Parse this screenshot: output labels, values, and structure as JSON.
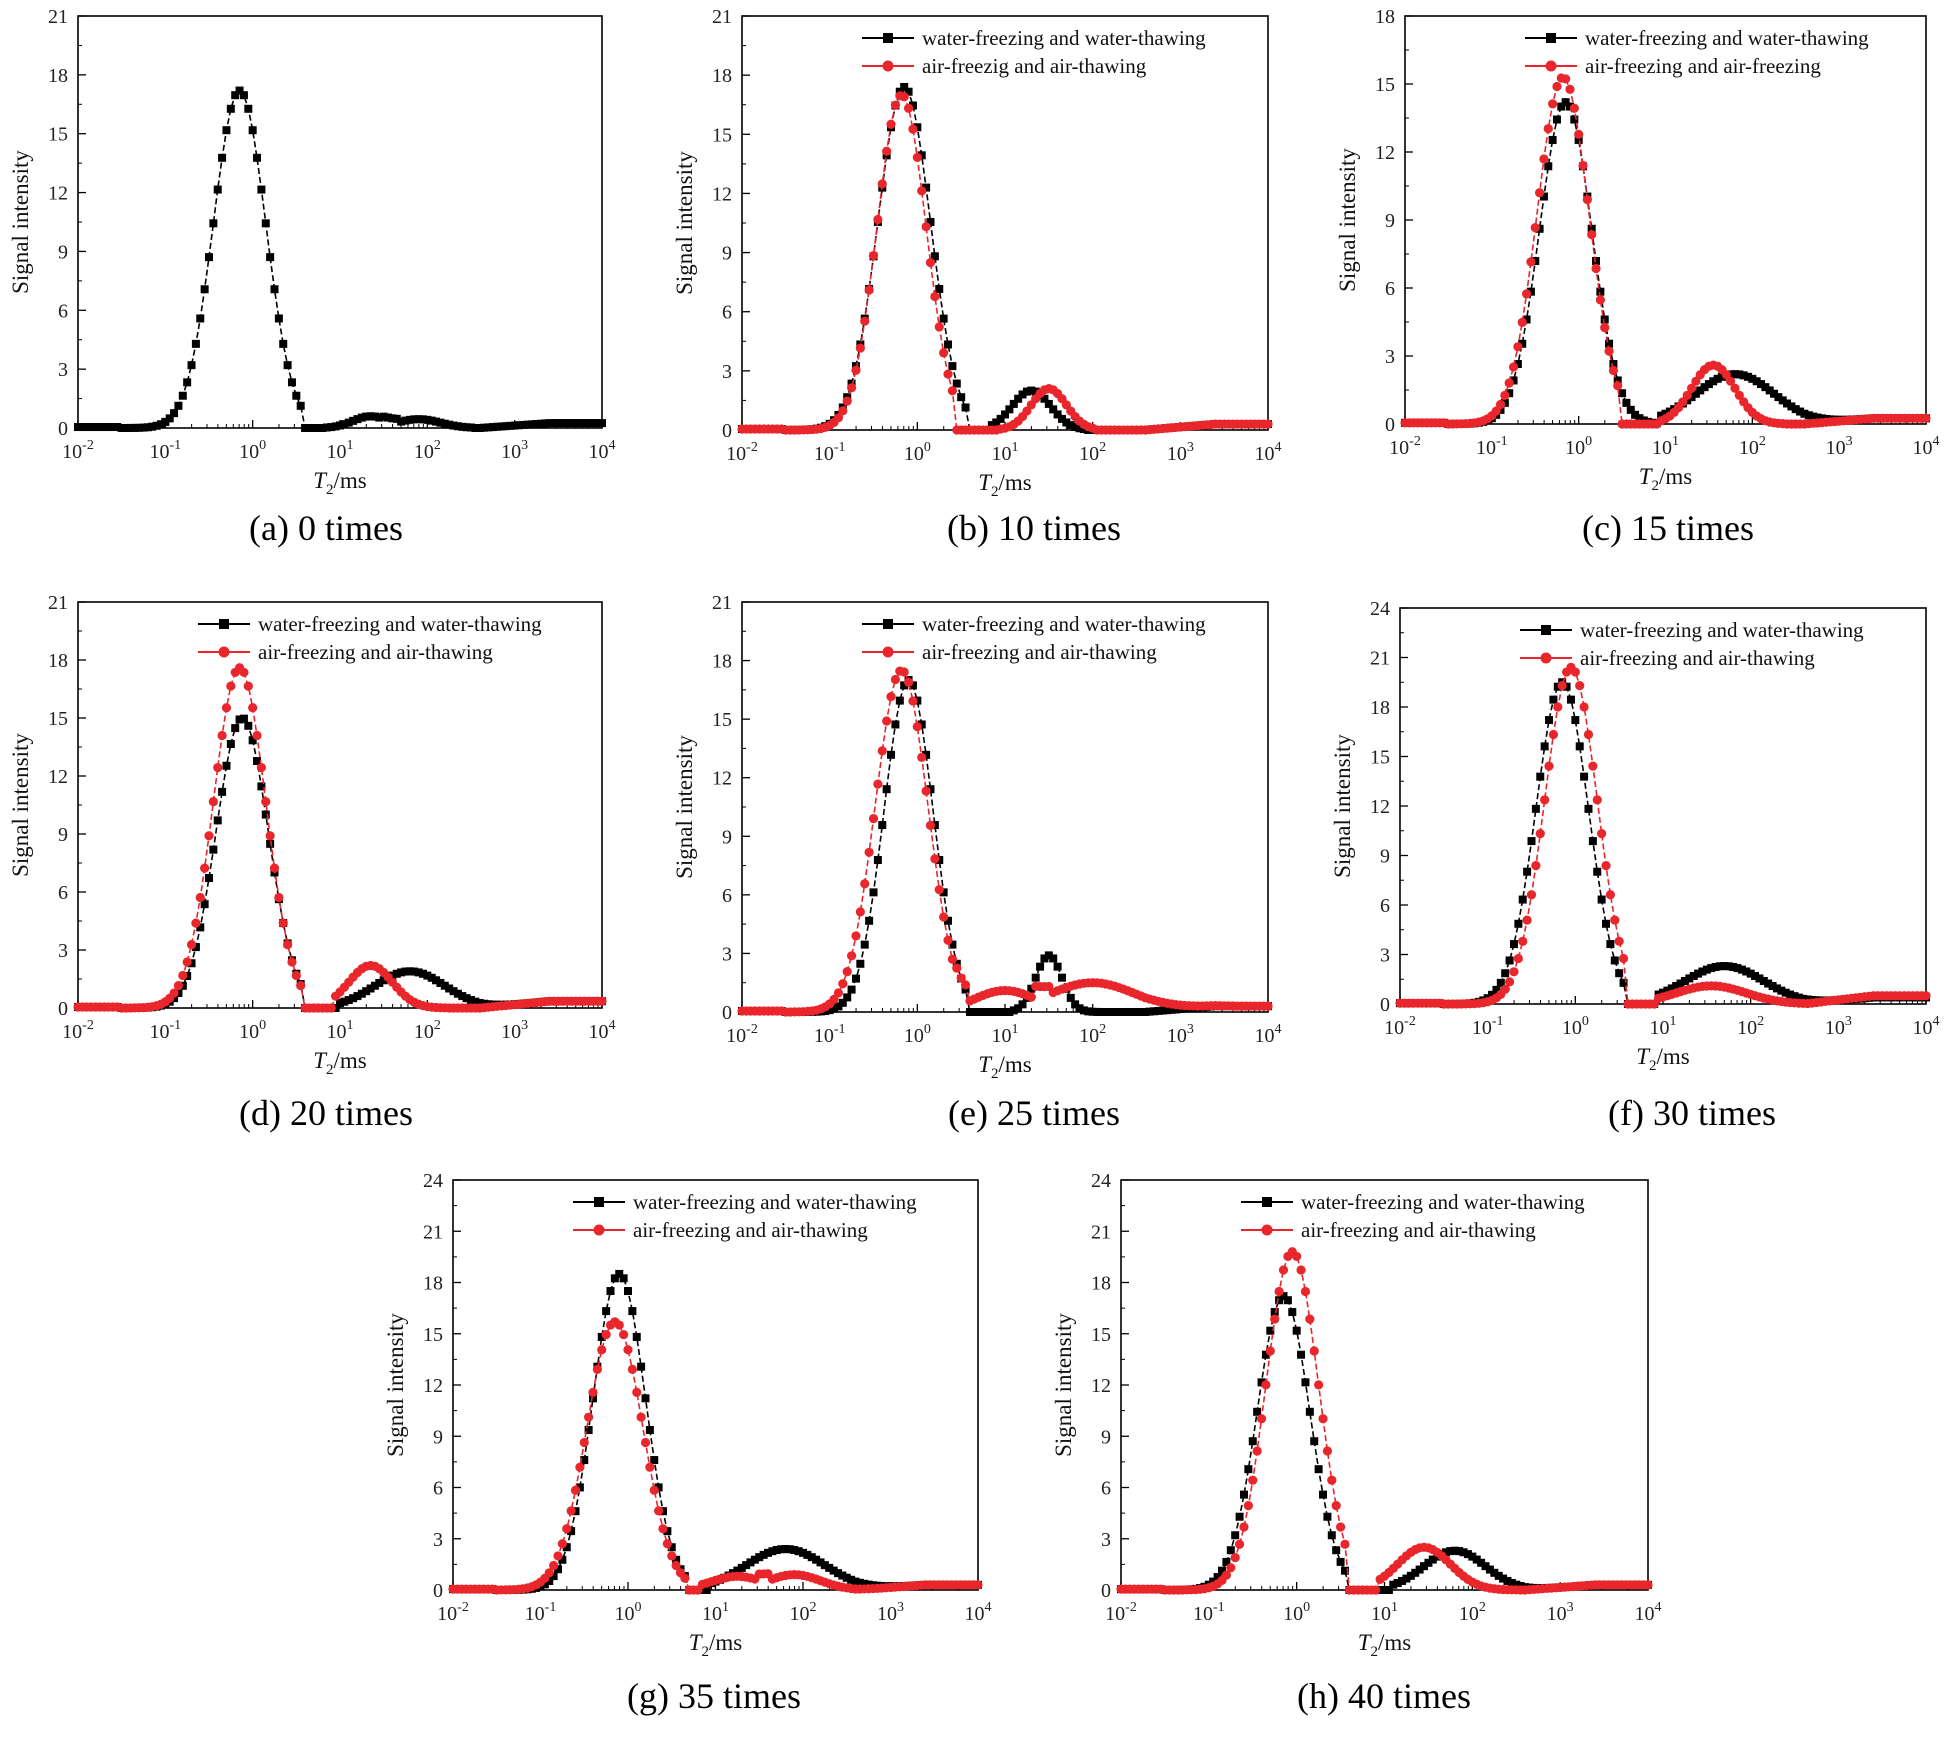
{
  "chart_data": [
    {
      "type": "line",
      "caption": "(a) 0 times",
      "xlabel": "T2/ms",
      "xlabel_italic": "T",
      "xlabel_sub": "2",
      "xlabel_rest": "/ms",
      "ylabel": "Signal intensity",
      "xscale": "log",
      "xticks": [
        "10-2",
        "10-1",
        "100",
        "101",
        "102",
        "103",
        "104"
      ],
      "xlim": [
        -2,
        4
      ],
      "yticks": [
        "0",
        "3",
        "6",
        "9",
        "12",
        "15",
        "18",
        "21"
      ],
      "ylim": [
        0,
        21
      ],
      "legend": [],
      "series": [
        {
          "name": "water-freezing and water-thawing",
          "color": "#000000",
          "marker": "square",
          "peaks": [
            {
              "mu": -0.15,
              "sigma": 0.3,
              "amp": 17.2,
              "cut_lo": -1.5,
              "cut_hi": 0.6
            },
            {
              "mu": 1.35,
              "sigma": 0.2,
              "amp": 0.6,
              "cut_lo": 0.8,
              "cut_hi": 1.7
            },
            {
              "mu": 1.9,
              "sigma": 0.25,
              "amp": 0.45,
              "cut_lo": 1.5,
              "cut_hi": 2.5
            }
          ],
          "base_left": 0.05,
          "base_right": 0.25
        }
      ]
    },
    {
      "type": "line",
      "caption": "(b) 10 times",
      "xlabel": "T2/ms",
      "xlabel_italic": "T",
      "xlabel_sub": "2",
      "xlabel_rest": "/ms",
      "ylabel": "Signal intensity",
      "xscale": "log",
      "xticks": [
        "10-2",
        "10-1",
        "100",
        "101",
        "102",
        "103",
        "104"
      ],
      "xlim": [
        -2,
        4
      ],
      "yticks": [
        "0",
        "3",
        "6",
        "9",
        "12",
        "15",
        "18",
        "21"
      ],
      "ylim": [
        0,
        21
      ],
      "legend": [
        "water-freezing and water-thawing",
        "air-freezig and air-thawing"
      ],
      "series": [
        {
          "name": "water-freezing and water-thawing",
          "color": "#000000",
          "marker": "square",
          "peaks": [
            {
              "mu": -0.15,
              "sigma": 0.3,
              "amp": 17.4,
              "cut_lo": -1.5,
              "cut_hi": 0.6
            },
            {
              "mu": 1.3,
              "sigma": 0.22,
              "amp": 2.0,
              "cut_lo": 0.8,
              "cut_hi": 1.9
            }
          ],
          "base_left": 0.05,
          "base_right": 0.3
        },
        {
          "name": "air-freezig and air-thawing",
          "color": "#e8262b",
          "marker": "circle",
          "peaks": [
            {
              "mu": -0.18,
              "sigma": 0.28,
              "amp": 17.0,
              "cut_lo": -1.5,
              "cut_hi": 0.45
            },
            {
              "mu": 1.5,
              "sigma": 0.2,
              "amp": 2.1,
              "cut_lo": 0.95,
              "cut_hi": 2.0
            }
          ],
          "base_left": 0.05,
          "base_right": 0.3
        }
      ]
    },
    {
      "type": "line",
      "caption": "(c) 15 times",
      "xlabel": "T2/ms",
      "xlabel_italic": "T",
      "xlabel_sub": "2",
      "xlabel_rest": "/ms",
      "ylabel": "Signal intensity",
      "xscale": "log",
      "xticks": [
        "10-2",
        "10-1",
        "100",
        "101",
        "102",
        "103",
        "104"
      ],
      "xlim": [
        -2,
        4
      ],
      "yticks": [
        "0",
        "3",
        "6",
        "9",
        "12",
        "15",
        "18"
      ],
      "ylim": [
        0,
        18
      ],
      "legend": [
        "water-freezing and water-thawing",
        "air-freezing and air-freezing"
      ],
      "series": [
        {
          "name": "water-freezing and water-thawing",
          "color": "#000000",
          "marker": "square",
          "peaks": [
            {
              "mu": -0.15,
              "sigma": 0.3,
              "amp": 14.2,
              "cut_lo": -1.5,
              "cut_hi": 0.9
            },
            {
              "mu": 1.8,
              "sigma": 0.45,
              "amp": 2.2,
              "cut_lo": 0.9,
              "cut_hi": 3.5
            }
          ],
          "base_left": 0.05,
          "base_right": 0.25
        },
        {
          "name": "air-freezing and air-freezing",
          "color": "#e8262b",
          "marker": "circle",
          "peaks": [
            {
              "mu": -0.18,
              "sigma": 0.3,
              "amp": 15.3,
              "cut_lo": -1.5,
              "cut_hi": 0.48
            },
            {
              "mu": 1.55,
              "sigma": 0.25,
              "amp": 2.6,
              "cut_lo": 0.9,
              "cut_hi": 2.4
            }
          ],
          "base_left": 0.05,
          "base_right": 0.25
        }
      ]
    },
    {
      "type": "line",
      "caption": "(d) 20 times",
      "xlabel": "T2/ms",
      "xlabel_italic": "T",
      "xlabel_sub": "2",
      "xlabel_rest": "/ms",
      "ylabel": "Signal intensity",
      "xscale": "log",
      "xticks": [
        "10-2",
        "10-1",
        "100",
        "101",
        "102",
        "103",
        "104"
      ],
      "xlim": [
        -2,
        4
      ],
      "yticks": [
        "0",
        "3",
        "6",
        "9",
        "12",
        "15",
        "18",
        "21"
      ],
      "ylim": [
        0,
        21
      ],
      "legend": [
        "water-freezing and water-thawing",
        "air-freezing and air-thawing"
      ],
      "series": [
        {
          "name": "water-freezing and water-thawing",
          "color": "#000000",
          "marker": "square",
          "peaks": [
            {
              "mu": -0.12,
              "sigma": 0.3,
              "amp": 15.0,
              "cut_lo": -1.5,
              "cut_hi": 0.6
            },
            {
              "mu": 1.8,
              "sigma": 0.4,
              "amp": 1.9,
              "cut_lo": 1.0,
              "cut_hi": 3.3
            }
          ],
          "base_left": 0.05,
          "base_right": 0.35
        },
        {
          "name": "air-freezing and air-thawing",
          "color": "#e8262b",
          "marker": "circle",
          "peaks": [
            {
              "mu": -0.15,
              "sigma": 0.3,
              "amp": 17.6,
              "cut_lo": -1.5,
              "cut_hi": 0.6
            },
            {
              "mu": 1.35,
              "sigma": 0.25,
              "amp": 2.2,
              "cut_lo": 0.9,
              "cut_hi": 2.2
            }
          ],
          "base_left": 0.05,
          "base_right": 0.35
        }
      ]
    },
    {
      "type": "line",
      "caption": "(e) 25 times",
      "xlabel": "T2/ms",
      "xlabel_italic": "T",
      "xlabel_sub": "2",
      "xlabel_rest": "/ms",
      "ylabel": "Signal intensity",
      "xscale": "log",
      "xticks": [
        "10-2",
        "10-1",
        "100",
        "101",
        "102",
        "103",
        "104"
      ],
      "xlim": [
        -2,
        4
      ],
      "yticks": [
        "0",
        "3",
        "6",
        "9",
        "12",
        "15",
        "18",
        "21"
      ],
      "ylim": [
        0,
        21
      ],
      "legend": [
        "water-freezing and water-thawing",
        "air-freezing and air-thawing"
      ],
      "series": [
        {
          "name": "water-freezing and water-thawing",
          "color": "#000000",
          "marker": "square",
          "peaks": [
            {
              "mu": -0.1,
              "sigma": 0.28,
              "amp": 17.0,
              "cut_lo": -1.5,
              "cut_hi": 0.55
            },
            {
              "mu": 1.5,
              "sigma": 0.15,
              "amp": 2.9,
              "cut_lo": 1.1,
              "cut_hi": 2.2
            }
          ],
          "base_left": 0.05,
          "base_right": 0.3
        },
        {
          "name": "air-freezing and air-thawing",
          "color": "#e8262b",
          "marker": "circle",
          "peaks": [
            {
              "mu": -0.18,
              "sigma": 0.3,
              "amp": 17.5,
              "cut_lo": -1.5,
              "cut_hi": 0.6
            },
            {
              "mu": 1.0,
              "sigma": 0.35,
              "amp": 1.1,
              "cut_lo": 0.4,
              "cut_hi": 1.5
            },
            {
              "mu": 2.0,
              "sigma": 0.5,
              "amp": 1.5,
              "cut_lo": 1.3,
              "cut_hi": 3.6
            }
          ],
          "base_left": 0.05,
          "base_right": 0.3
        }
      ]
    },
    {
      "type": "line",
      "caption": "(f) 30 times",
      "xlabel": "T2/ms",
      "xlabel_italic": "T",
      "xlabel_sub": "2",
      "xlabel_rest": "/ms",
      "ylabel": "Signal intensity",
      "xscale": "log",
      "xticks": [
        "10-2",
        "10-1",
        "100",
        "101",
        "102",
        "103",
        "104"
      ],
      "xlim": [
        -2,
        4
      ],
      "yticks": [
        "0",
        "3",
        "6",
        "9",
        "12",
        "15",
        "18",
        "21",
        "24"
      ],
      "ylim": [
        0,
        24
      ],
      "legend": [
        "water-freezing and water-thawing",
        "air-freezing and air-thawing"
      ],
      "series": [
        {
          "name": "water-freezing and water-thawing",
          "color": "#000000",
          "marker": "square",
          "peaks": [
            {
              "mu": -0.15,
              "sigma": 0.3,
              "amp": 19.5,
              "cut_lo": -1.5,
              "cut_hi": 0.6
            },
            {
              "mu": 1.7,
              "sigma": 0.45,
              "amp": 2.3,
              "cut_lo": 0.9,
              "cut_hi": 3.2
            }
          ],
          "base_left": 0.05,
          "base_right": 0.4
        },
        {
          "name": "air-freezing and air-thawing",
          "color": "#e8262b",
          "marker": "circle",
          "peaks": [
            {
              "mu": -0.05,
              "sigma": 0.3,
              "amp": 20.4,
              "cut_lo": -1.5,
              "cut_hi": 0.6
            },
            {
              "mu": 1.55,
              "sigma": 0.4,
              "amp": 1.1,
              "cut_lo": 0.9,
              "cut_hi": 2.6
            }
          ],
          "base_left": 0.05,
          "base_right": 0.5
        }
      ]
    },
    {
      "type": "line",
      "caption": "(g) 35 times",
      "xlabel": "T2/ms",
      "xlabel_italic": "T",
      "xlabel_sub": "2",
      "xlabel_rest": "/ms",
      "ylabel": "Signal intensity",
      "xscale": "log",
      "xticks": [
        "10-2",
        "10-1",
        "100",
        "101",
        "102",
        "103",
        "104"
      ],
      "xlim": [
        -2,
        4
      ],
      "yticks": [
        "0",
        "3",
        "6",
        "9",
        "12",
        "15",
        "18",
        "21",
        "24"
      ],
      "ylim": [
        0,
        24
      ],
      "legend": [
        "water-freezing and water-thawing",
        "air-freezing and air-thawing"
      ],
      "series": [
        {
          "name": "water-freezing and water-thawing",
          "color": "#000000",
          "marker": "square",
          "peaks": [
            {
              "mu": -0.1,
              "sigma": 0.3,
              "amp": 18.5,
              "cut_lo": -1.5,
              "cut_hi": 0.65
            },
            {
              "mu": 1.8,
              "sigma": 0.45,
              "amp": 2.4,
              "cut_lo": 0.9,
              "cut_hi": 3.4
            }
          ],
          "base_left": 0.05,
          "base_right": 0.3
        },
        {
          "name": "air-freezing and air-thawing",
          "color": "#e8262b",
          "marker": "circle",
          "peaks": [
            {
              "mu": -0.15,
              "sigma": 0.32,
              "amp": 15.7,
              "cut_lo": -1.5,
              "cut_hi": 0.7
            },
            {
              "mu": 1.25,
              "sigma": 0.3,
              "amp": 0.8,
              "cut_lo": 0.8,
              "cut_hi": 1.6
            },
            {
              "mu": 1.9,
              "sigma": 0.3,
              "amp": 0.9,
              "cut_lo": 1.5,
              "cut_hi": 2.8
            }
          ],
          "base_left": 0.05,
          "base_right": 0.3
        }
      ]
    },
    {
      "type": "line",
      "caption": "(h) 40 times",
      "xlabel": "T2/ms",
      "xlabel_italic": "T",
      "xlabel_sub": "2",
      "xlabel_rest": "/ms",
      "ylabel": "Signal intensity",
      "xscale": "log",
      "xticks": [
        "10-2",
        "10-1",
        "100",
        "101",
        "102",
        "103",
        "104"
      ],
      "xlim": [
        -2,
        4
      ],
      "yticks": [
        "0",
        "3",
        "6",
        "9",
        "12",
        "15",
        "18",
        "21",
        "24"
      ],
      "ylim": [
        0,
        24
      ],
      "legend": [
        "water-freezing and water-thawing",
        "air-freezing and air-thawing"
      ],
      "series": [
        {
          "name": "water-freezing and water-thawing",
          "color": "#000000",
          "marker": "square",
          "peaks": [
            {
              "mu": -0.15,
              "sigma": 0.3,
              "amp": 17.2,
              "cut_lo": -1.5,
              "cut_hi": 0.55
            },
            {
              "mu": 1.8,
              "sigma": 0.35,
              "amp": 2.3,
              "cut_lo": 1.1,
              "cut_hi": 3.0
            }
          ],
          "base_left": 0.05,
          "base_right": 0.3
        },
        {
          "name": "air-freezing and air-thawing",
          "color": "#e8262b",
          "marker": "circle",
          "peaks": [
            {
              "mu": -0.05,
              "sigma": 0.3,
              "amp": 19.8,
              "cut_lo": -1.5,
              "cut_hi": 0.6
            },
            {
              "mu": 1.45,
              "sigma": 0.3,
              "amp": 2.5,
              "cut_lo": 0.95,
              "cut_hi": 2.6
            }
          ],
          "base_left": 0.05,
          "base_right": 0.3
        }
      ]
    }
  ]
}
